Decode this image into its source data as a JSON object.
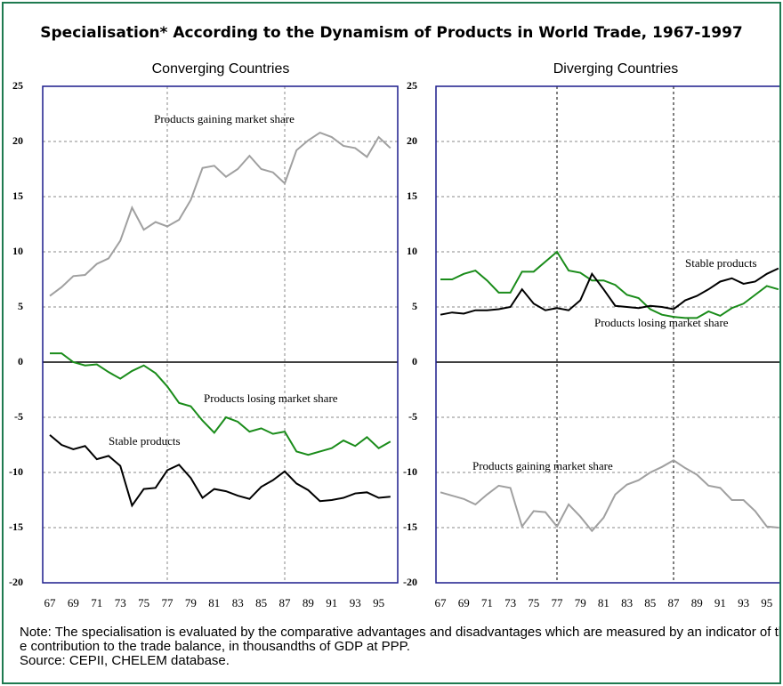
{
  "title": "Specialisation* According to the Dynamism of Products in World Trade, 1967-1997",
  "note": "Note: The specialisation is evaluated by the comparative advantages and disadvantages which are measured by an indicator of the contribution to the trade balance, in thousandths of GDP at PPP.",
  "source": "Source: CEPII, CHELEM database.",
  "chart_data": [
    {
      "type": "line",
      "title": "Converging Countries",
      "categories": [
        "67",
        null,
        "69",
        null,
        "71",
        null,
        "73",
        null,
        "75",
        null,
        "77",
        null,
        "79",
        null,
        "81",
        null,
        "83",
        null,
        "85",
        null,
        "87",
        null,
        "89",
        null,
        "91",
        null,
        "93",
        null,
        "95",
        null
      ],
      "ylim": [
        -20,
        25
      ],
      "yticks": [
        -20,
        -15,
        -10,
        -5,
        0,
        5,
        10,
        15,
        20,
        25
      ],
      "grid": true,
      "series": [
        {
          "name": "Products gaining market share",
          "color": "#a0a0a0",
          "values": [
            6.0,
            6.8,
            7.8,
            7.9,
            8.9,
            9.4,
            11.0,
            14.0,
            12.0,
            12.7,
            12.3,
            12.9,
            14.7,
            17.6,
            17.8,
            16.8,
            17.5,
            18.7,
            17.5,
            17.2,
            16.2,
            19.2,
            20.1,
            20.8,
            20.4,
            19.6,
            19.4,
            18.6,
            20.4,
            19.4
          ]
        },
        {
          "name": "Products losing market share",
          "color": "#1a8c1a",
          "values": [
            0.8,
            0.8,
            0,
            -0.3,
            -0.2,
            -0.9,
            -1.5,
            -0.8,
            -0.3,
            -1.0,
            -2.2,
            -3.7,
            -4.0,
            -5.3,
            -6.4,
            -5.0,
            -5.4,
            -6.3,
            -6.0,
            -6.5,
            -6.3,
            -8.1,
            -8.4,
            -8.1,
            -7.8,
            -7.1,
            -7.6,
            -6.8,
            -7.8,
            -7.2
          ]
        },
        {
          "name": "Stable products",
          "color": "#000000",
          "values": [
            -6.6,
            -7.5,
            -7.9,
            -7.6,
            -8.8,
            -8.5,
            -9.4,
            -13.0,
            -11.5,
            -11.4,
            -9.8,
            -9.3,
            -10.5,
            -12.3,
            -11.5,
            -11.7,
            -12.1,
            -12.4,
            -11.3,
            -10.7,
            -9.9,
            -11.0,
            -11.6,
            -12.6,
            -12.5,
            -12.3,
            -11.9,
            -11.8,
            -12.3,
            -12.2
          ]
        }
      ]
    },
    {
      "type": "line",
      "title": "Diverging Countries",
      "categories": [
        "67",
        null,
        "69",
        null,
        "71",
        null,
        "73",
        null,
        "75",
        null,
        "77",
        null,
        "79",
        null,
        "81",
        null,
        "83",
        null,
        "85",
        null,
        "87",
        null,
        "89",
        null,
        "91",
        null,
        "93",
        null,
        "95",
        null
      ],
      "ylim": [
        -20,
        25
      ],
      "yticks": [
        -20,
        -15,
        -10,
        -5,
        0,
        5,
        10,
        15,
        20,
        25
      ],
      "grid": true,
      "series": [
        {
          "name": "Products gaining market share",
          "color": "#a0a0a0",
          "values": [
            -11.8,
            -12.1,
            -12.4,
            -12.9,
            -12.0,
            -11.2,
            -11.4,
            -14.9,
            -13.5,
            -13.6,
            -14.9,
            -12.9,
            -14.0,
            -15.3,
            -14.1,
            -12.0,
            -11.1,
            -10.7,
            -10.0,
            -9.5,
            -8.9,
            -9.6,
            -10.2,
            -11.2,
            -11.4,
            -12.5,
            -12.5,
            -13.5,
            -14.9,
            -15.0
          ]
        },
        {
          "name": "Products losing market share",
          "color": "#1a8c1a",
          "values": [
            7.5,
            7.5,
            8.0,
            8.3,
            7.4,
            6.3,
            6.3,
            8.2,
            8.2,
            9.1,
            10.0,
            8.3,
            8.1,
            7.4,
            7.4,
            7.0,
            6.1,
            5.8,
            4.8,
            4.3,
            4.1,
            4.0,
            4.0,
            4.6,
            4.2,
            4.9,
            5.3,
            6.1,
            6.9,
            6.6
          ]
        },
        {
          "name": "Stable products",
          "color": "#000000",
          "values": [
            4.3,
            4.5,
            4.4,
            4.7,
            4.7,
            4.8,
            5.0,
            6.6,
            5.3,
            4.7,
            4.9,
            4.7,
            5.6,
            8.0,
            6.6,
            5.1,
            5.0,
            4.9,
            5.1,
            5.0,
            4.8,
            5.6,
            6.0,
            6.6,
            7.3,
            7.6,
            7.1,
            7.3,
            8.0,
            8.5
          ]
        }
      ]
    }
  ]
}
